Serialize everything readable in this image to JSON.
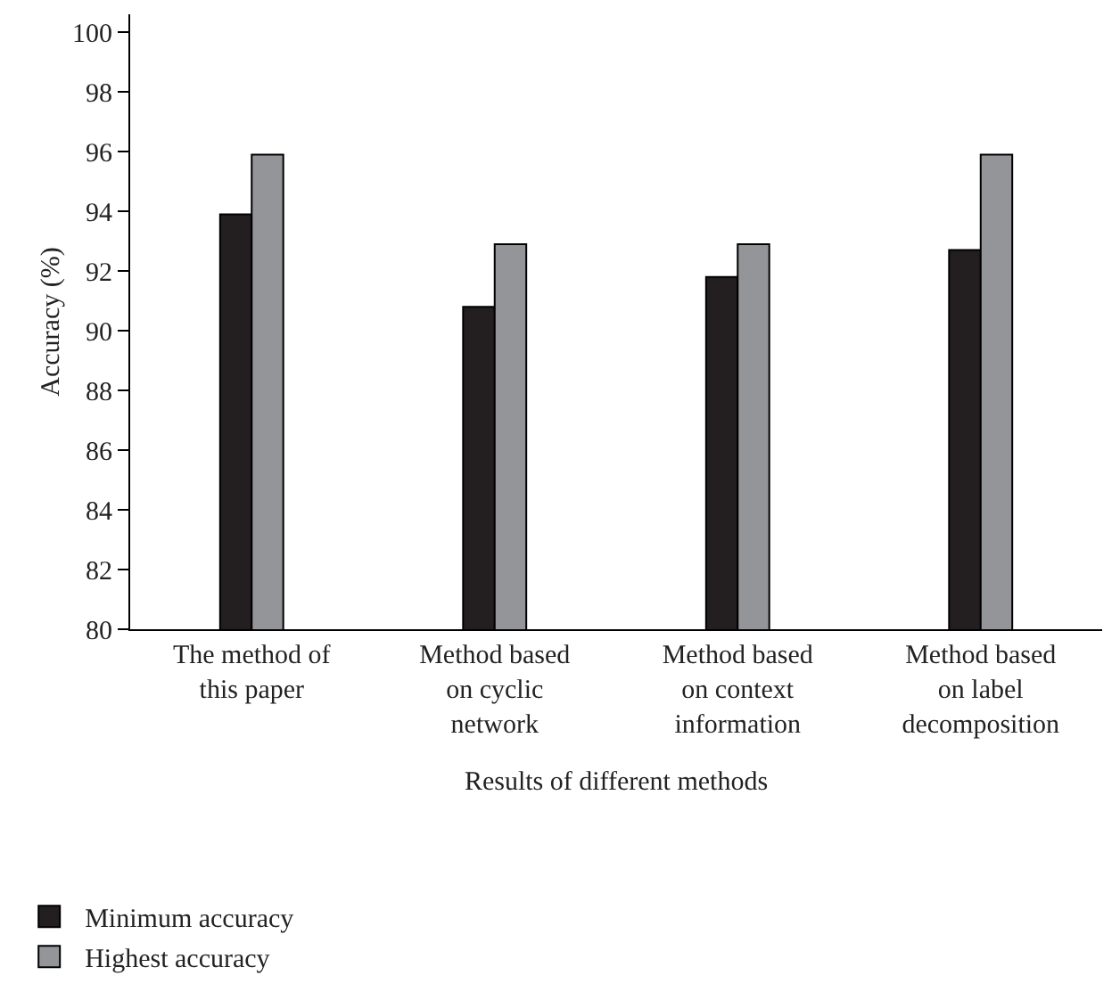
{
  "chart_data": {
    "type": "bar",
    "xlabel": "Results of different methods",
    "ylabel": "Accuracy (%)",
    "categories": [
      "The method of this paper",
      "Method based on cyclic network",
      "Method based on context information",
      "Method based on label decomposition"
    ],
    "series": [
      {
        "name": "Minimum accuracy",
        "color": "#231f20",
        "values": [
          93.9,
          90.8,
          91.8,
          92.7
        ]
      },
      {
        "name": "Highest accuracy",
        "color": "#939598",
        "values": [
          95.9,
          92.9,
          92.9,
          95.9
        ]
      }
    ],
    "ylim": [
      80,
      100.6
    ],
    "yticks": [
      80,
      82,
      84,
      86,
      88,
      90,
      92,
      94,
      96,
      98,
      100
    ],
    "grid": false,
    "legend": "bottom left"
  }
}
